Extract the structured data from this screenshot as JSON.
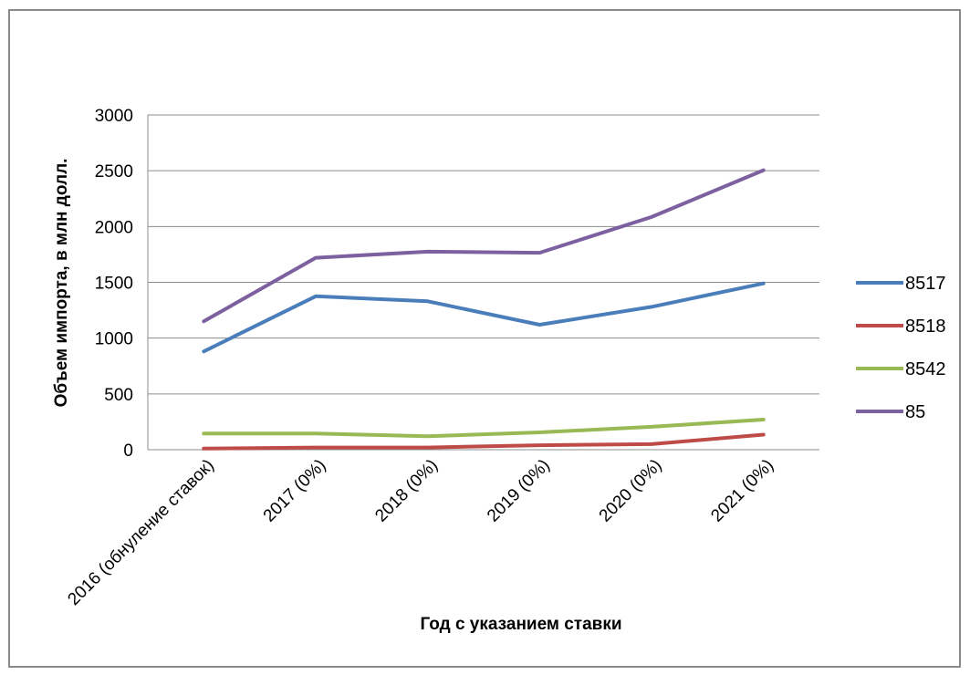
{
  "chart_data": {
    "type": "line",
    "title": "",
    "xlabel": "Год с указанием ставки",
    "ylabel": "Объем импорта, в млн долл.",
    "categories": [
      "2016 (обнуление ставок)",
      "2017 (0%)",
      "2018 (0%)",
      "2019 (0%)",
      "2020 (0%)",
      "2021 (0%)"
    ],
    "ylim": [
      0,
      3000
    ],
    "yticks": [
      "0",
      "500",
      "1000",
      "1500",
      "2000",
      "2500",
      "3000"
    ],
    "grid": "horizontal",
    "legend_position": "right",
    "series": [
      {
        "name": "8517",
        "color": "#4a7ebb",
        "values": [
          880,
          1375,
          1330,
          1120,
          1280,
          1490
        ]
      },
      {
        "name": "8518",
        "color": "#be4b48",
        "values": [
          10,
          20,
          20,
          40,
          50,
          135
        ]
      },
      {
        "name": "8542",
        "color": "#98b954",
        "values": [
          145,
          145,
          120,
          155,
          205,
          270
        ]
      },
      {
        "name": "85",
        "color": "#7d60a0",
        "values": [
          1150,
          1720,
          1775,
          1765,
          2085,
          2505
        ]
      }
    ]
  }
}
